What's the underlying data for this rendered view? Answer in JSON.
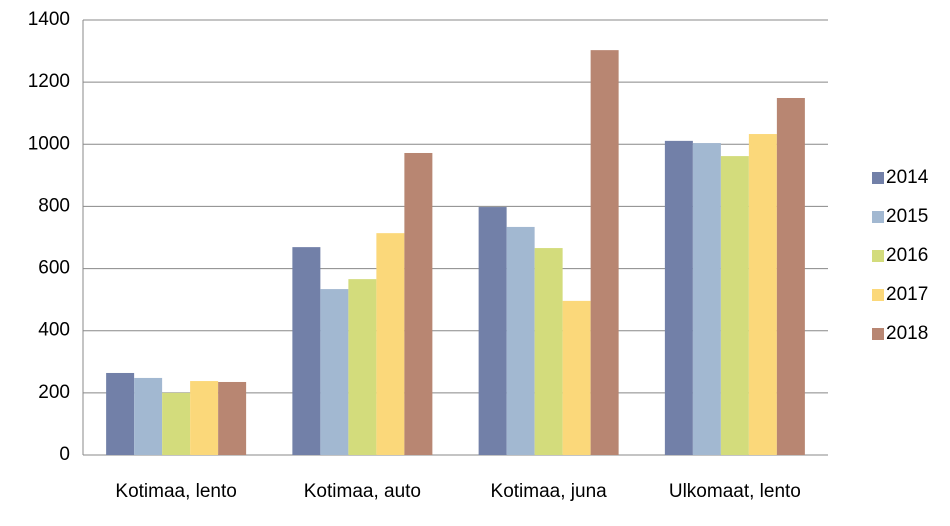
{
  "chart_data": {
    "type": "bar",
    "categories": [
      "Kotimaa, lento",
      "Kotimaa, auto",
      "Kotimaa, juna",
      "Ulkomaat, lento"
    ],
    "series": [
      {
        "name": "2014",
        "color": "#7280a8",
        "values": [
          264,
          669,
          798,
          1011
        ]
      },
      {
        "name": "2015",
        "color": "#a2b8d1",
        "values": [
          248,
          534,
          734,
          1004
        ]
      },
      {
        "name": "2016",
        "color": "#d3dc7c",
        "values": [
          200,
          566,
          666,
          962
        ]
      },
      {
        "name": "2017",
        "color": "#fbd87a",
        "values": [
          238,
          714,
          496,
          1033
        ]
      },
      {
        "name": "2018",
        "color": "#b88672",
        "values": [
          235,
          972,
          1303,
          1149
        ]
      }
    ],
    "ylim": [
      0,
      1400
    ],
    "yticks": [
      0,
      200,
      400,
      600,
      800,
      1000,
      1200,
      1400
    ],
    "grid": true,
    "legend": "right"
  }
}
